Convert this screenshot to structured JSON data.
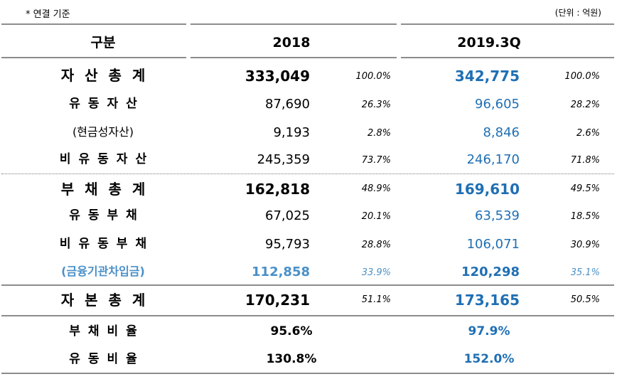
{
  "notes": {
    "basis": "* 연결 기준",
    "unit": "(단위 : 억원)"
  },
  "header": {
    "category": "구분",
    "col_2018": "2018",
    "col_2019": "2019.3Q"
  },
  "rows": [
    {
      "label": "자산총계",
      "v2018": "333,049",
      "p2018": "100.0%",
      "v2019": "342,775",
      "p2019": "100.0%"
    },
    {
      "label": "유동자산",
      "v2018": "87,690",
      "p2018": "26.3%",
      "v2019": "96,605",
      "p2019": "28.2%"
    },
    {
      "label": "(현금성자산)",
      "v2018": "9,193",
      "p2018": "2.8%",
      "v2019": "8,846",
      "p2019": "2.6%"
    },
    {
      "label": "비유동자산",
      "v2018": "245,359",
      "p2018": "73.7%",
      "v2019": "246,170",
      "p2019": "71.8%"
    },
    {
      "label": "부채총계",
      "v2018": "162,818",
      "p2018": "48.9%",
      "v2019": "169,610",
      "p2019": "49.5%"
    },
    {
      "label": "유동부채",
      "v2018": "67,025",
      "p2018": "20.1%",
      "v2019": "63,539",
      "p2019": "18.5%"
    },
    {
      "label": "비유동부채",
      "v2018": "95,793",
      "p2018": "28.8%",
      "v2019": "106,071",
      "p2019": "30.9%"
    },
    {
      "label": "(금융기관차입금)",
      "v2018": "112,858",
      "p2018": "33.9%",
      "v2019": "120,298",
      "p2019": "35.1%"
    },
    {
      "label": "자본총계",
      "v2018": "170,231",
      "p2018": "51.1%",
      "v2019": "173,165",
      "p2019": "50.5%"
    }
  ],
  "ratios": [
    {
      "label": "부채비율",
      "v2018": "95.6%",
      "v2019": "97.9%"
    },
    {
      "label": "유동비율",
      "v2018": "130.8%",
      "v2019": "152.0%"
    }
  ]
}
